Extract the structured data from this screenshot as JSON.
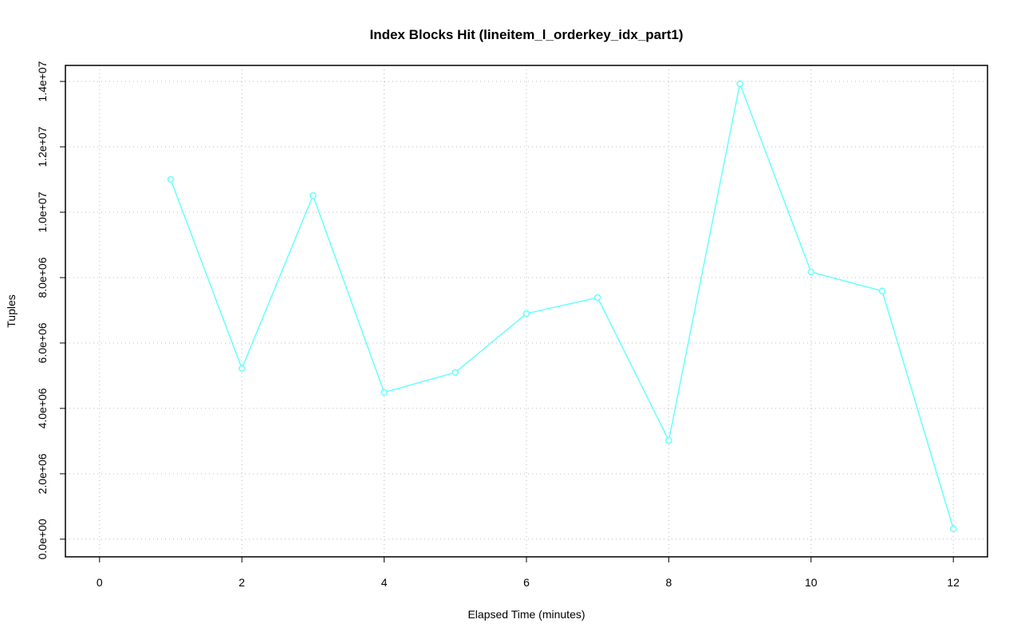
{
  "chart_data": {
    "type": "line",
    "title": "Index Blocks Hit (lineitem_l_orderkey_idx_part1)",
    "x_label": "Elapsed Time (minutes)",
    "y_label": "Tuples",
    "x": [
      1,
      2,
      3,
      4,
      5,
      6,
      7,
      8,
      9,
      10,
      11,
      12
    ],
    "series": [
      {
        "color": "#66ffff",
        "values": [
          11000000,
          5220000,
          10510000,
          4490000,
          5100000,
          6900000,
          7390000,
          3020000,
          13930000,
          8170000,
          7590000,
          320000
        ]
      }
    ],
    "xlim": [
      -0.48,
      12.48
    ],
    "xticks": [
      0,
      2,
      4,
      6,
      8,
      10,
      12
    ],
    "ylim": [
      -540000,
      14490000
    ],
    "yticks": [
      {
        "value": 0,
        "label": "0.0e+00"
      },
      {
        "value": 2000000,
        "label": "2.0e+06"
      },
      {
        "value": 4000000,
        "label": "4.0e+06"
      },
      {
        "value": 6000000,
        "label": "6.0e+06"
      },
      {
        "value": 8000000,
        "label": "8.0e+06"
      },
      {
        "value": 10000000,
        "label": "1.0e+07"
      },
      {
        "value": 12000000,
        "label": "1.2e+07"
      },
      {
        "value": 14000000,
        "label": "1.4e+07"
      }
    ],
    "grid": true
  }
}
